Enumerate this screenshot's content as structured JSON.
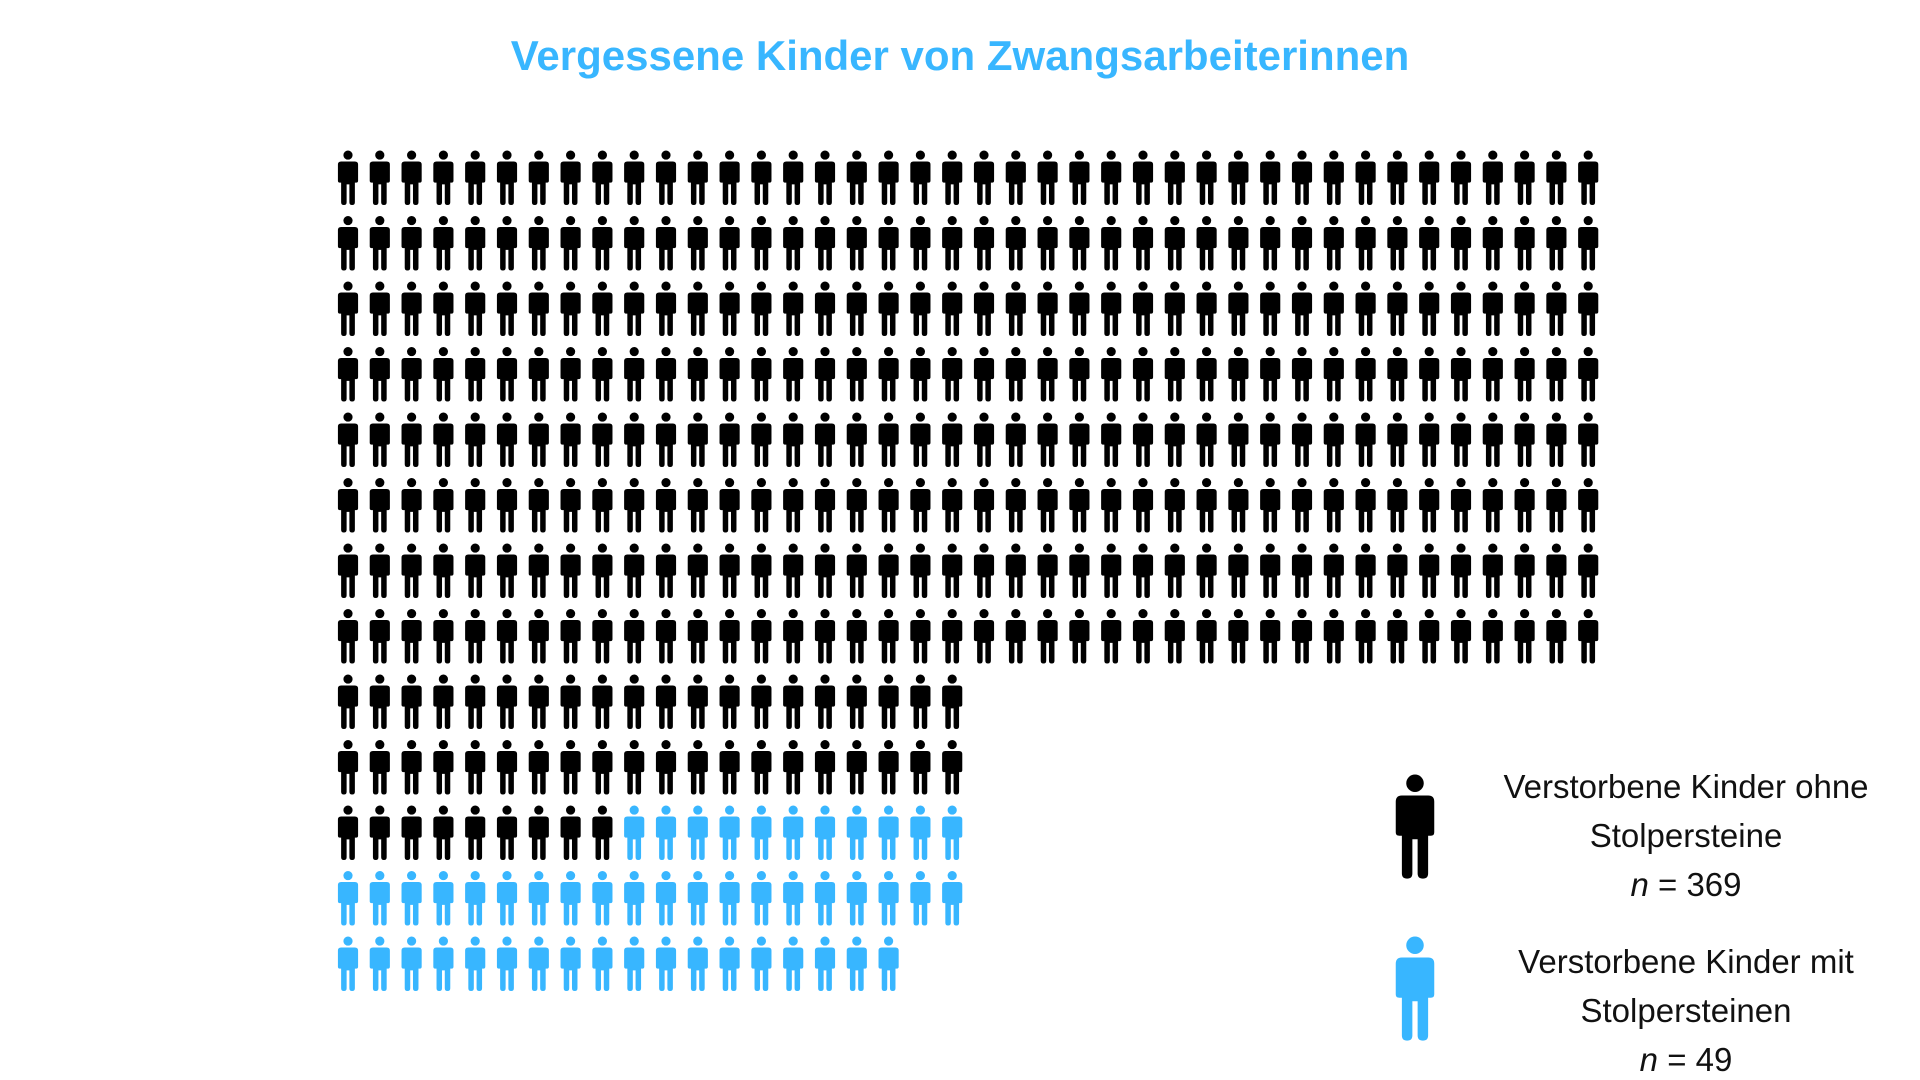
{
  "chart_data": {
    "type": "pictogram",
    "title": "Vergessene Kinder von Zwangsarbeiterinnen",
    "units_per_icon": 1,
    "series": [
      {
        "name_line1": "Verstorbene Kinder ohne",
        "name_line2": "Stolpersteine",
        "n_label": "n",
        "n_value": "= 369",
        "value": 369,
        "color": "#000000"
      },
      {
        "name_line1": "Verstorbene Kinder mit",
        "name_line2": "Stolpersteinen",
        "n_label": "n",
        "n_value": "= 49",
        "value": 49,
        "color": "#38b6ff"
      }
    ],
    "grid": {
      "full_rows": 8,
      "full_row_icons": 40,
      "lower_row_icons": 20
    },
    "legend_position": "right"
  }
}
